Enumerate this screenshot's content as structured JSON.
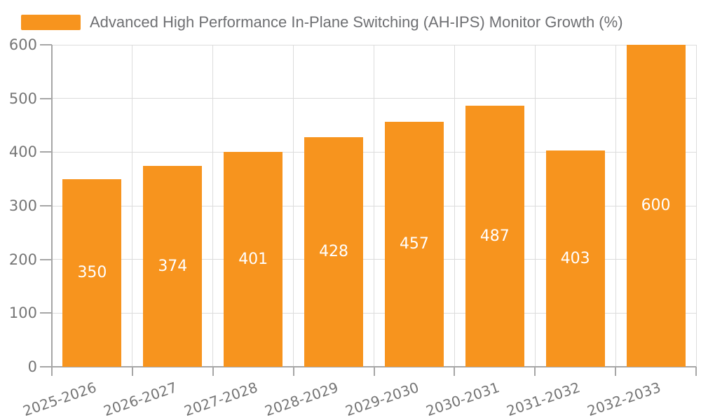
{
  "legend": {
    "label": "Advanced High Performance In-Plane Switching (AH-IPS) Monitor Growth (%)",
    "swatch_color": "#F7941E"
  },
  "chart_data": {
    "type": "bar",
    "title": "Advanced High Performance In-Plane Switching (AH-IPS) Monitor Growth (%)",
    "categories": [
      "2025-2026",
      "2026-2027",
      "2027-2028",
      "2028-2029",
      "2029-2030",
      "2030-2031",
      "2031-2032",
      "2032-2033"
    ],
    "values": [
      350,
      374,
      401,
      428,
      457,
      487,
      403,
      600
    ],
    "xlabel": "",
    "ylabel": "",
    "ylim": [
      0,
      600
    ],
    "yticks": [
      0,
      100,
      200,
      300,
      400,
      500,
      600
    ],
    "grid": true,
    "legend_position": "top-left",
    "bar_color": "#F7941E",
    "value_label_color": "#FFFFFF",
    "tick_label_color": "#757575",
    "gridline_color": "#DCDCDC",
    "axis_color": "#A6A6A6",
    "x_label_rotation_deg": -19
  }
}
